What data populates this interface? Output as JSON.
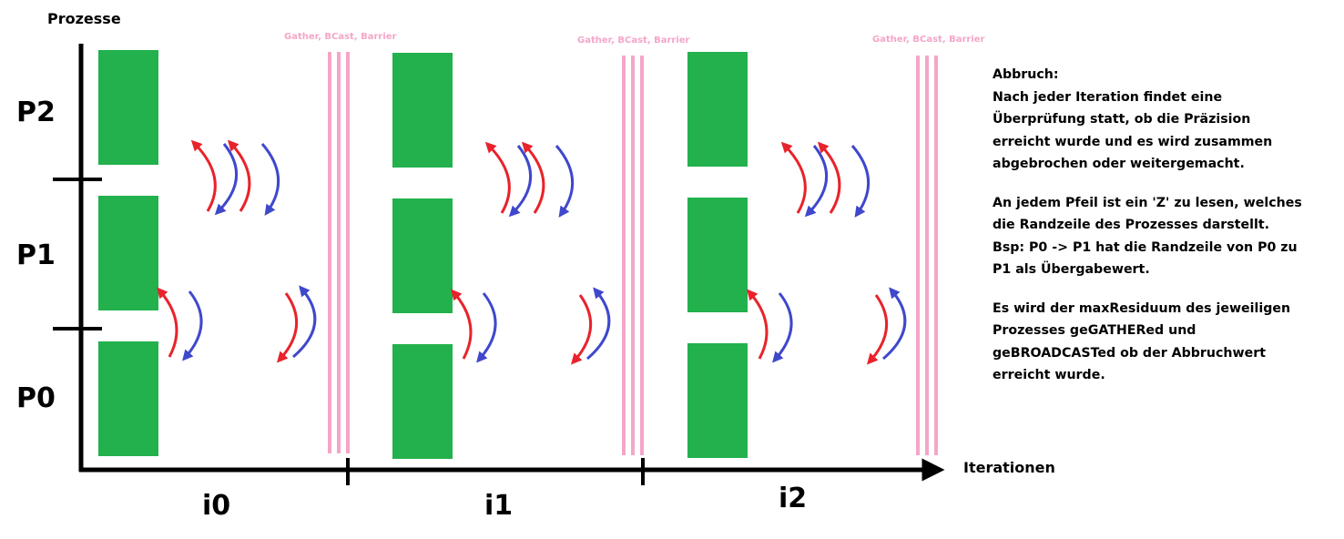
{
  "axes": {
    "y_label": "Prozesse",
    "x_label": "Iterationen"
  },
  "processes": [
    "P2",
    "P1",
    "P0"
  ],
  "iterations": [
    "i0",
    "i1",
    "i2"
  ],
  "sync_label": "Gather, BCast, Barrier",
  "notes": [
    "Abbruch:\nNach jeder Iteration findet eine\nÜberprüfung statt, ob die Präzision\nerreicht wurde und es wird zusammen\nabgebrochen oder weitergemacht.",
    "An jedem Pfeil ist ein 'Z' zu lesen, welches\ndie Randzeile des Prozesses darstellt.\nBsp: P0 -> P1 hat die Randzeile von P0 zu\nP1 als Übergabewert.",
    "Es wird der maxResiduum des jeweiligen\nProzesses geGATHERed und\ngeBROADCASTed ob der Abbruchwert\nerreicht wurde."
  ],
  "colors": {
    "block": "#22b14c",
    "sync_line": "#f4a6c8",
    "arrow_red": "#e8232b",
    "arrow_blue": "#3f48cc",
    "axis": "#000000"
  }
}
